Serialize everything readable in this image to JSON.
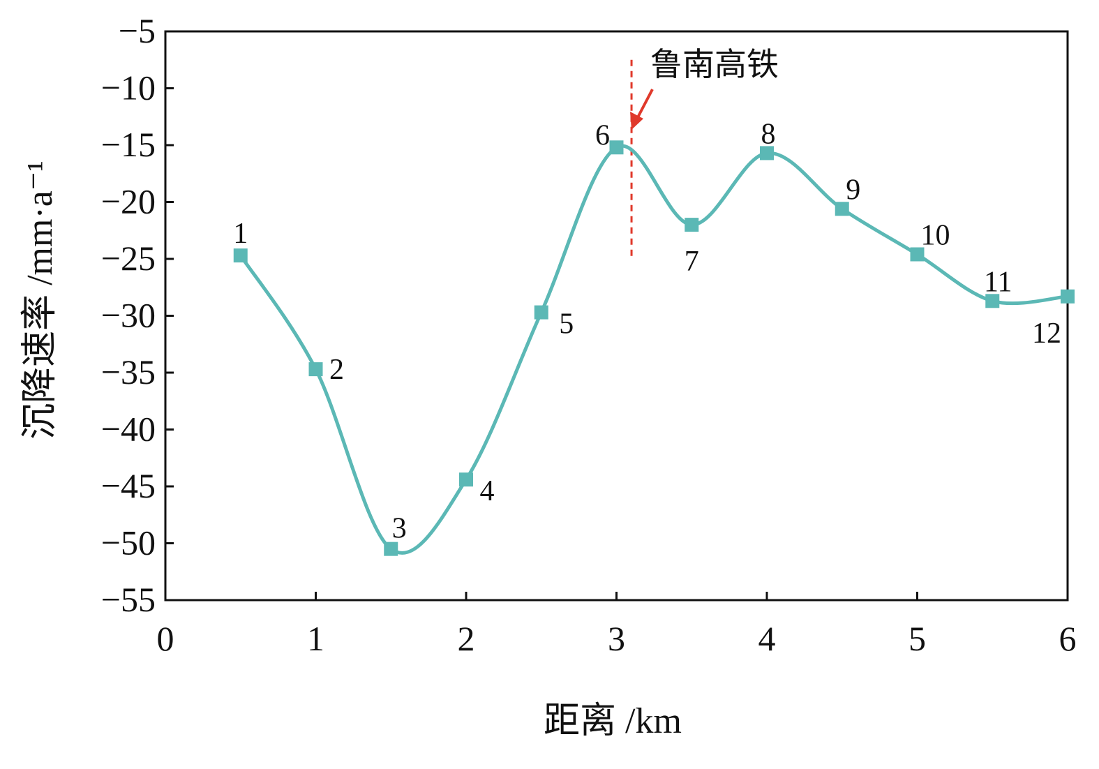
{
  "chart_data": {
    "type": "line",
    "x_label": "距离 /km",
    "y_label": "沉降速率 /mm·a⁻¹",
    "x": [
      0.5,
      1,
      1.5,
      2,
      2.5,
      3,
      3.5,
      4,
      4.5,
      5,
      5.5,
      6
    ],
    "series": [
      {
        "color": "#5bb8b5",
        "values": [
          -24.7,
          -34.7,
          -50.5,
          -44.4,
          -29.7,
          -15.2,
          -22.0,
          -15.7,
          -20.6,
          -24.6,
          -28.7,
          -28.3
        ]
      }
    ],
    "point_labels": [
      "1",
      "2",
      "3",
      "4",
      "5",
      "6",
      "7",
      "8",
      "9",
      "10",
      "11",
      "12"
    ],
    "annotation": {
      "text": "鲁南高铁",
      "x": 3.1,
      "color": "#e0392b"
    },
    "xlim": [
      0,
      6
    ],
    "xticks": [
      0,
      1,
      2,
      3,
      4,
      5,
      6
    ],
    "ylim": [
      -55,
      -5
    ],
    "yticks": [
      {
        "value": -5,
        "label": "−5"
      },
      {
        "value": -10,
        "label": "−10"
      },
      {
        "value": -15,
        "label": "−15"
      },
      {
        "value": -20,
        "label": "−20"
      },
      {
        "value": -25,
        "label": "−25"
      },
      {
        "value": -30,
        "label": "−30"
      },
      {
        "value": -35,
        "label": "−35"
      },
      {
        "value": -40,
        "label": "−40"
      },
      {
        "value": -45,
        "label": "−45"
      },
      {
        "value": -50,
        "label": "−50"
      },
      {
        "value": -55,
        "label": "−55"
      }
    ]
  }
}
